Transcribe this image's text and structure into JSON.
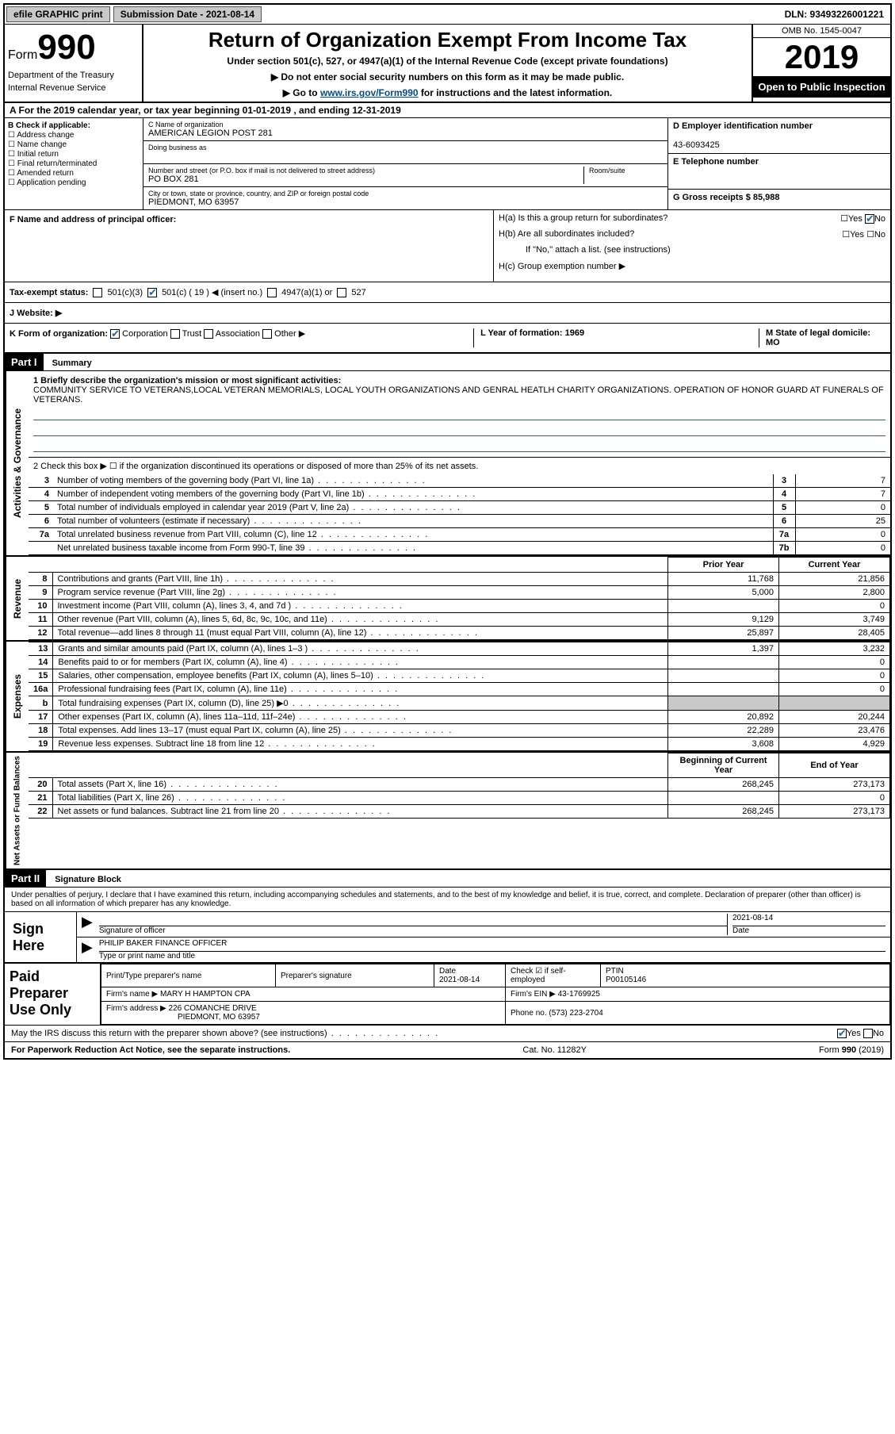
{
  "topbar": {
    "efile": "efile GRAPHIC print",
    "submission": "Submission Date - 2021-08-14",
    "dln": "DLN: 93493226001221"
  },
  "header": {
    "form_label": "Form",
    "form_num": "990",
    "dept": "Department of the Treasury",
    "irs": "Internal Revenue Service",
    "title": "Return of Organization Exempt From Income Tax",
    "subsection": "Under section 501(c), 527, or 4947(a)(1) of the Internal Revenue Code (except private foundations)",
    "ssn_note": "▶ Do not enter social security numbers on this form as it may be made public.",
    "goto_pre": "▶ Go to ",
    "goto_link": "www.irs.gov/Form990",
    "goto_post": " for instructions and the latest information.",
    "omb": "OMB No. 1545-0047",
    "year": "2019",
    "open": "Open to Public Inspection"
  },
  "period": "A For the 2019 calendar year, or tax year beginning 01-01-2019    , and ending 12-31-2019",
  "section_b": {
    "label": "B Check if applicable:",
    "items": [
      "Address change",
      "Name change",
      "Initial return",
      "Final return/terminated",
      "Amended return",
      "Application pending"
    ]
  },
  "section_c": {
    "name_lbl": "C Name of organization",
    "name": "AMERICAN LEGION POST 281",
    "dba_lbl": "Doing business as",
    "addr_lbl": "Number and street (or P.O. box if mail is not delivered to street address)",
    "room_lbl": "Room/suite",
    "addr": "PO BOX 281",
    "city_lbl": "City or town, state or province, country, and ZIP or foreign postal code",
    "city": "PIEDMONT, MO  63957"
  },
  "section_d": {
    "ein_lbl": "D Employer identification number",
    "ein": "43-6093425",
    "phone_lbl": "E Telephone number",
    "gross_lbl": "G Gross receipts $ 85,988"
  },
  "section_f": "F  Name and address of principal officer:",
  "section_h": {
    "ha": "H(a)  Is this a group return for subordinates?",
    "hb": "H(b)  Are all subordinates included?",
    "hb_note": "If \"No,\" attach a list. (see instructions)",
    "hc": "H(c)  Group exemption number ▶"
  },
  "tax_exempt": {
    "label": "Tax-exempt status:",
    "c3": "501(c)(3)",
    "c": "501(c) ( 19 ) ◀ (insert no.)",
    "a1": "4947(a)(1) or",
    "s527": "527"
  },
  "section_j": "J   Website: ▶",
  "section_k": {
    "label": "K Form of organization:",
    "corp": "Corporation",
    "trust": "Trust",
    "assoc": "Association",
    "other": "Other ▶",
    "l": "L Year of formation: 1969",
    "m": "M State of legal domicile: MO"
  },
  "part1": {
    "label": "Part I",
    "title": "Summary",
    "tabs": {
      "ag": "Activities & Governance",
      "rev": "Revenue",
      "exp": "Expenses",
      "na": "Net Assets or Fund Balances"
    },
    "line1_lbl": "1  Briefly describe the organization's mission or most significant activities:",
    "mission": "COMMUNITY SERVICE TO VETERANS,LOCAL VETERAN MEMORIALS, LOCAL YOUTH ORGANIZATIONS AND GENRAL HEATLH CHARITY ORGANIZATIONS. OPERATION OF HONOR GUARD AT FUNERALS OF VETERANS.",
    "line2": "2   Check this box ▶ ☐  if the organization discontinued its operations or disposed of more than 25% of its net assets.",
    "rows_ag": [
      {
        "n": "3",
        "d": "Number of voting members of the governing body (Part VI, line 1a)",
        "box": "3",
        "v": "7"
      },
      {
        "n": "4",
        "d": "Number of independent voting members of the governing body (Part VI, line 1b)",
        "box": "4",
        "v": "7"
      },
      {
        "n": "5",
        "d": "Total number of individuals employed in calendar year 2019 (Part V, line 2a)",
        "box": "5",
        "v": "0"
      },
      {
        "n": "6",
        "d": "Total number of volunteers (estimate if necessary)",
        "box": "6",
        "v": "25"
      },
      {
        "n": "7a",
        "d": "Total unrelated business revenue from Part VIII, column (C), line 12",
        "box": "7a",
        "v": "0"
      },
      {
        "n": "",
        "d": "Net unrelated business taxable income from Form 990-T, line 39",
        "box": "7b",
        "v": "0"
      }
    ],
    "prior_year": "Prior Year",
    "current_year": "Current Year",
    "rows_rev": [
      {
        "n": "8",
        "d": "Contributions and grants (Part VIII, line 1h)",
        "py": "11,768",
        "cy": "21,856"
      },
      {
        "n": "9",
        "d": "Program service revenue (Part VIII, line 2g)",
        "py": "5,000",
        "cy": "2,800"
      },
      {
        "n": "10",
        "d": "Investment income (Part VIII, column (A), lines 3, 4, and 7d )",
        "py": "",
        "cy": "0"
      },
      {
        "n": "11",
        "d": "Other revenue (Part VIII, column (A), lines 5, 6d, 8c, 9c, 10c, and 11e)",
        "py": "9,129",
        "cy": "3,749"
      },
      {
        "n": "12",
        "d": "Total revenue—add lines 8 through 11 (must equal Part VIII, column (A), line 12)",
        "py": "25,897",
        "cy": "28,405"
      }
    ],
    "rows_exp": [
      {
        "n": "13",
        "d": "Grants and similar amounts paid (Part IX, column (A), lines 1–3 )",
        "py": "1,397",
        "cy": "3,232"
      },
      {
        "n": "14",
        "d": "Benefits paid to or for members (Part IX, column (A), line 4)",
        "py": "",
        "cy": "0"
      },
      {
        "n": "15",
        "d": "Salaries, other compensation, employee benefits (Part IX, column (A), lines 5–10)",
        "py": "",
        "cy": "0"
      },
      {
        "n": "16a",
        "d": "Professional fundraising fees (Part IX, column (A), line 11e)",
        "py": "",
        "cy": "0"
      },
      {
        "n": "b",
        "d": "Total fundraising expenses (Part IX, column (D), line 25) ▶0",
        "py": "SHADE",
        "cy": "SHADE"
      },
      {
        "n": "17",
        "d": "Other expenses (Part IX, column (A), lines 11a–11d, 11f–24e)",
        "py": "20,892",
        "cy": "20,244"
      },
      {
        "n": "18",
        "d": "Total expenses. Add lines 13–17 (must equal Part IX, column (A), line 25)",
        "py": "22,289",
        "cy": "23,476"
      },
      {
        "n": "19",
        "d": "Revenue less expenses. Subtract line 18 from line 12",
        "py": "3,608",
        "cy": "4,929"
      }
    ],
    "begin_year": "Beginning of Current Year",
    "end_year": "End of Year",
    "rows_na": [
      {
        "n": "20",
        "d": "Total assets (Part X, line 16)",
        "py": "268,245",
        "cy": "273,173"
      },
      {
        "n": "21",
        "d": "Total liabilities (Part X, line 26)",
        "py": "",
        "cy": "0"
      },
      {
        "n": "22",
        "d": "Net assets or fund balances. Subtract line 21 from line 20",
        "py": "268,245",
        "cy": "273,173"
      }
    ]
  },
  "part2": {
    "label": "Part II",
    "title": "Signature Block",
    "declaration": "Under penalties of perjury, I declare that I have examined this return, including accompanying schedules and statements, and to the best of my knowledge and belief, it is true, correct, and complete. Declaration of preparer (other than officer) is based on all information of which preparer has any knowledge.",
    "sign_here": "Sign Here",
    "sig_officer": "Signature of officer",
    "sig_date": "2021-08-14",
    "date_lbl": "Date",
    "officer_name": "PHILIP BAKER  FINANCE OFFICER",
    "type_name": "Type or print name and title",
    "paid": "Paid Preparer Use Only",
    "prep_name_lbl": "Print/Type preparer's name",
    "prep_sig_lbl": "Preparer's signature",
    "prep_date": "2021-08-14",
    "check_self": "Check ☑ if self-employed",
    "ptin_lbl": "PTIN",
    "ptin": "P00105146",
    "firm_name_lbl": "Firm's name    ▶",
    "firm_name": "MARY H HAMPTON CPA",
    "firm_ein_lbl": "Firm's EIN ▶",
    "firm_ein": "43-1769925",
    "firm_addr_lbl": "Firm's address ▶",
    "firm_addr1": "226 COMANCHE DRIVE",
    "firm_addr2": "PIEDMONT, MO  63957",
    "phone_lbl": "Phone no.",
    "phone": "(573) 223-2704",
    "discuss": "May the IRS discuss this return with the preparer shown above? (see instructions)"
  },
  "footer": {
    "paperwork": "For Paperwork Reduction Act Notice, see the separate instructions.",
    "cat": "Cat. No. 11282Y",
    "form": "Form 990 (2019)"
  }
}
